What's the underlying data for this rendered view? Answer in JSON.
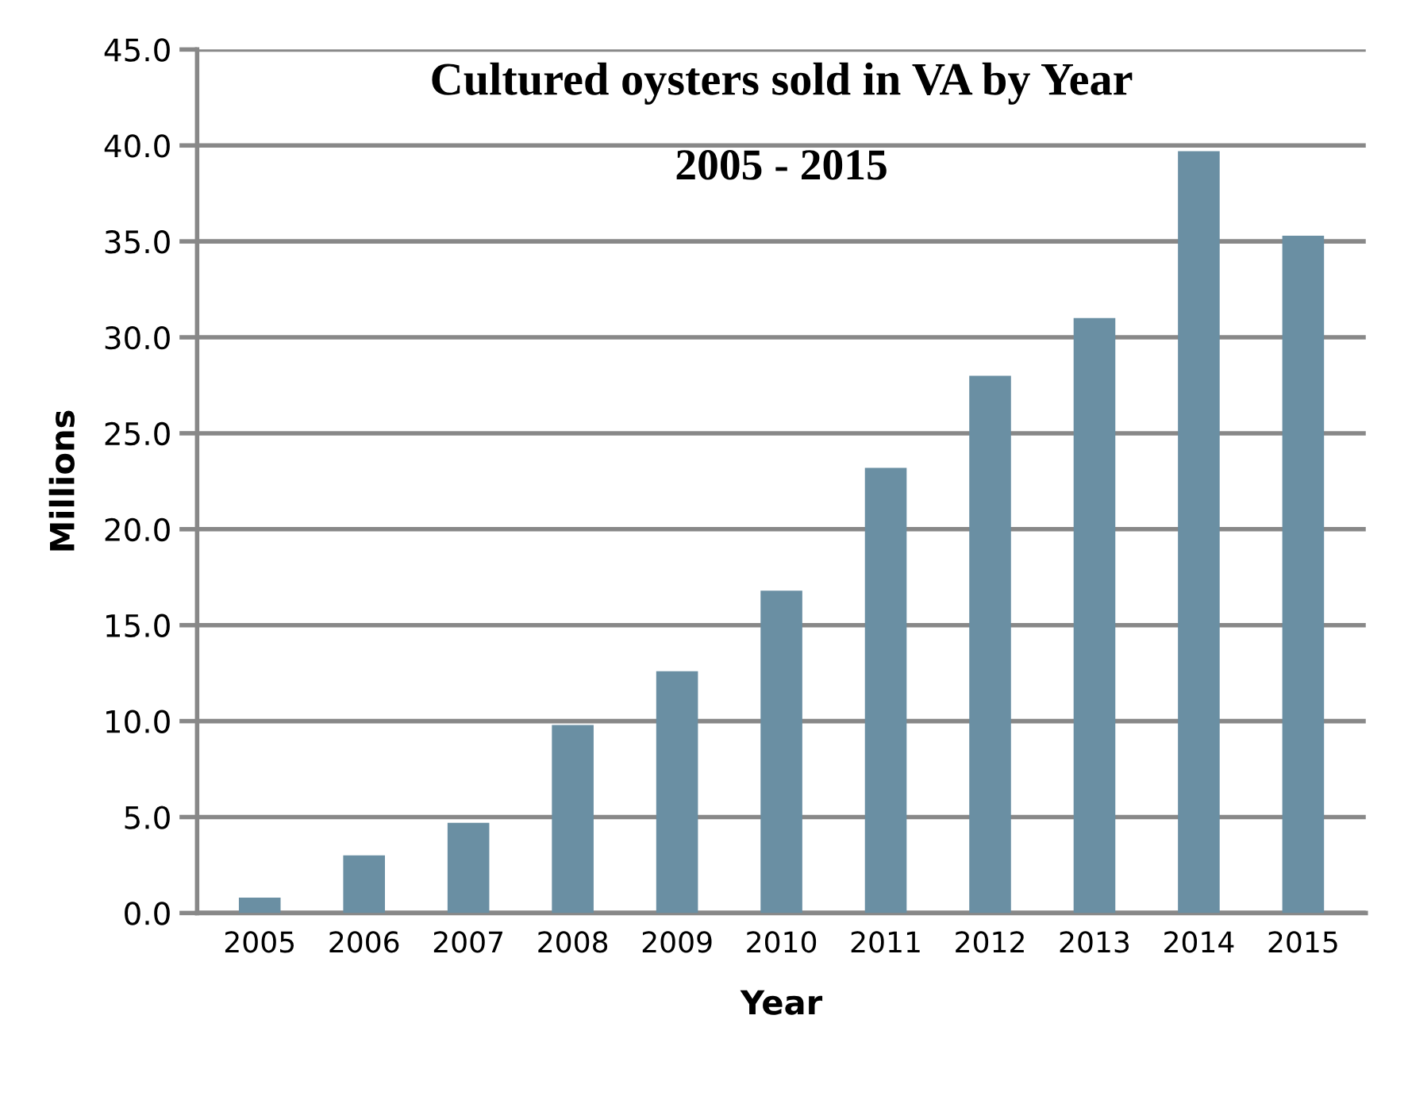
{
  "chart_data": {
    "type": "bar",
    "title": "Cultured oysters sold in VA by Year",
    "subtitle": "2005 - 2015",
    "xlabel": "Year",
    "ylabel": "Millions",
    "categories": [
      "2005",
      "2006",
      "2007",
      "2008",
      "2009",
      "2010",
      "2011",
      "2012",
      "2013",
      "2014",
      "2015"
    ],
    "values": [
      0.8,
      3.0,
      4.7,
      9.8,
      12.6,
      16.8,
      23.2,
      28.0,
      31.0,
      39.7,
      35.3
    ],
    "color": "#6a8fa3",
    "ylim": [
      0,
      45
    ],
    "yticks": [
      {
        "value": 0,
        "label": "0.0"
      },
      {
        "value": 5,
        "label": "5.0"
      },
      {
        "value": 10,
        "label": "10.0"
      },
      {
        "value": 15,
        "label": "15.0"
      },
      {
        "value": 20,
        "label": "20.0"
      },
      {
        "value": 25,
        "label": "25.0"
      },
      {
        "value": 30,
        "label": "30.0"
      },
      {
        "value": 35,
        "label": "35.0"
      },
      {
        "value": 40,
        "label": "40.0"
      },
      {
        "value": 45,
        "label": "45.0"
      }
    ],
    "grid": "y"
  }
}
